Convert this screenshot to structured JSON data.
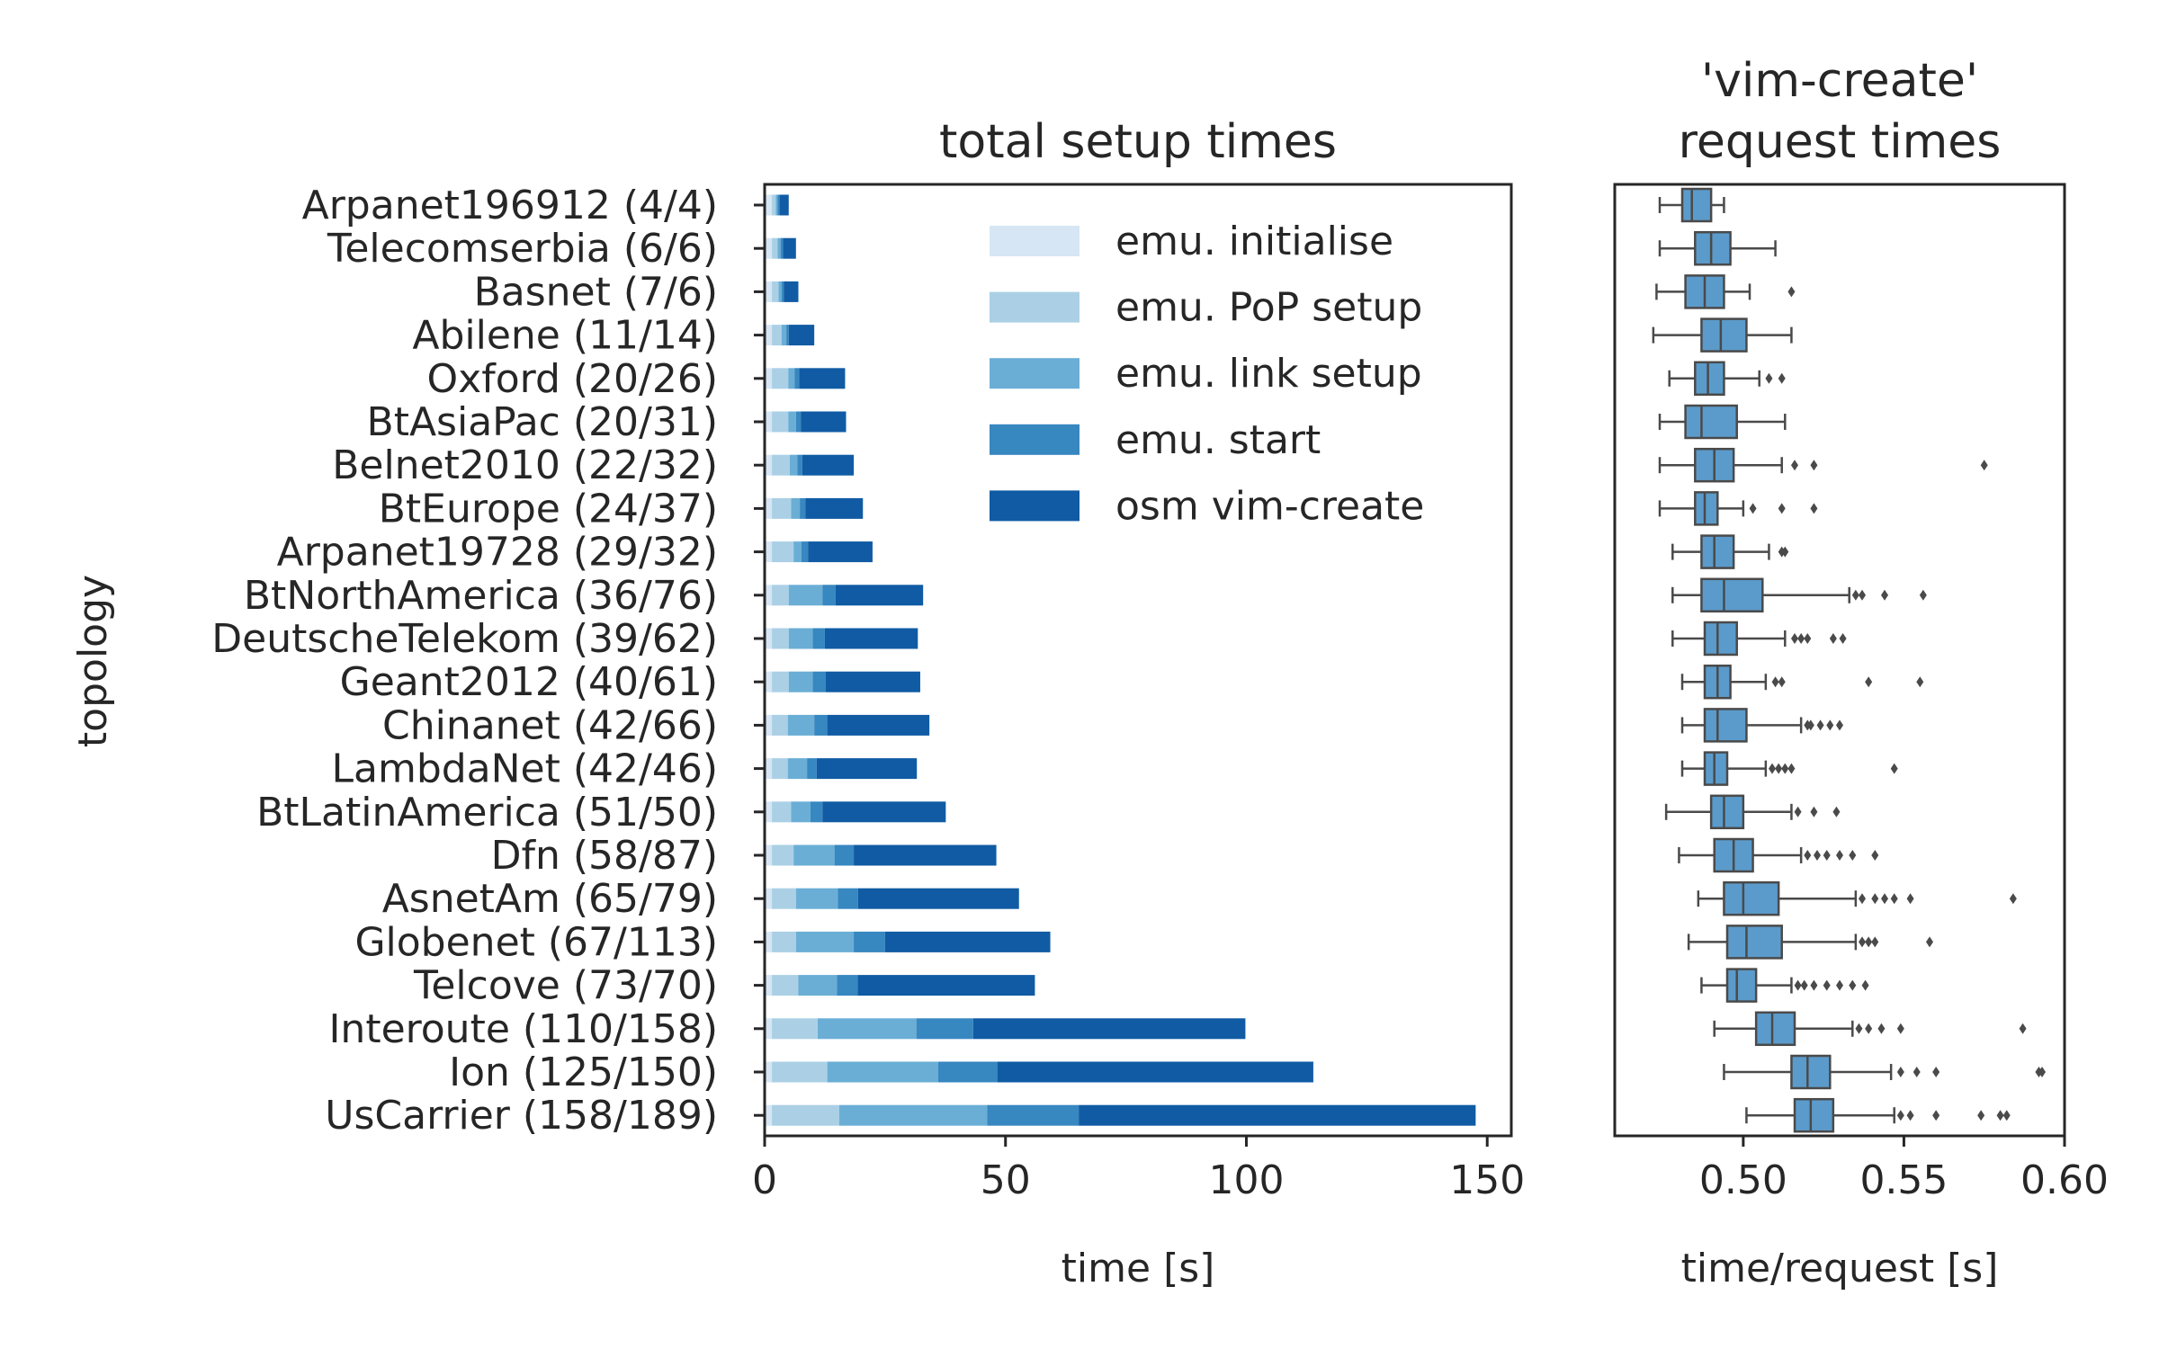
{
  "chart_data": [
    {
      "type": "bar",
      "orientation": "horizontal",
      "stacked": true,
      "title": "total setup times",
      "xlabel": "time [s]",
      "ylabel": "topology",
      "xlim": [
        0,
        155
      ],
      "xticks": [
        0,
        50,
        100,
        150
      ],
      "categories": [
        "Arpanet196912 (4/4)",
        "Telecomserbia (6/6)",
        "Basnet (7/6)",
        "Abilene (11/14)",
        "Oxford (20/26)",
        "BtAsiaPac (20/31)",
        "Belnet2010 (22/32)",
        "BtEurope (24/37)",
        "Arpanet19728 (29/32)",
        "BtNorthAmerica (36/76)",
        "DeutscheTelekom (39/62)",
        "Geant2012 (40/61)",
        "Chinanet (42/66)",
        "LambdaNet (42/46)",
        "BtLatinAmerica (51/50)",
        "Dfn (58/87)",
        "AsnetAm (65/79)",
        "Globenet (67/113)",
        "Telcove (73/70)",
        "Interoute (110/158)",
        "Ion (125/150)",
        "UsCarrier (158/189)"
      ],
      "series": [
        {
          "name": "emu. initialise",
          "color": "#d6e6f4",
          "values": [
            1.5,
            1.5,
            1.5,
            1.5,
            1.5,
            1.5,
            1.5,
            1.5,
            1.5,
            1.5,
            1.5,
            1.5,
            1.5,
            1.5,
            1.5,
            1.5,
            1.5,
            1.5,
            1.5,
            1.5,
            1.5,
            1.5
          ]
        },
        {
          "name": "emu. PoP setup",
          "color": "#abd0e6",
          "values": [
            0.8,
            1.2,
            1.4,
            2.0,
            3.4,
            3.4,
            3.7,
            4.0,
            4.5,
            3.5,
            3.5,
            3.5,
            3.3,
            3.3,
            4.0,
            4.5,
            5.0,
            5.0,
            5.5,
            9.5,
            11.5,
            14.0
          ]
        },
        {
          "name": "emu. link setup",
          "color": "#6aaed6",
          "values": [
            0.4,
            0.6,
            0.6,
            1.0,
            1.3,
            1.6,
            1.6,
            1.8,
            1.6,
            7.0,
            5.0,
            5.0,
            5.5,
            4.0,
            4.0,
            8.5,
            8.7,
            12.0,
            8.0,
            20.5,
            23.0,
            30.7
          ]
        },
        {
          "name": "emu. start",
          "color": "#3787c0",
          "values": [
            0.4,
            0.5,
            0.5,
            0.5,
            1.0,
            1.0,
            1.0,
            1.2,
            1.4,
            2.7,
            2.5,
            2.7,
            2.7,
            2.0,
            2.5,
            4.0,
            4.2,
            6.5,
            4.3,
            11.8,
            12.3,
            19.0
          ]
        },
        {
          "name": "osm vim-create",
          "color": "#105ba4",
          "values": [
            1.9,
            2.7,
            3.0,
            5.3,
            9.5,
            9.4,
            10.7,
            11.9,
            13.4,
            18.2,
            19.3,
            19.6,
            21.2,
            20.8,
            25.6,
            29.6,
            33.4,
            34.3,
            36.8,
            56.5,
            65.6,
            82.4
          ]
        }
      ],
      "legend_position": "top-right"
    },
    {
      "type": "box",
      "orientation": "horizontal",
      "title": "'vim-create'\nrequest times",
      "title_lines": [
        "'vim-create'",
        "request times"
      ],
      "xlabel": "time/request [s]",
      "xlim": [
        0.46,
        0.6
      ],
      "xticks": [
        0.5,
        0.55,
        0.6
      ],
      "xtick_labels": [
        "0.50",
        "0.55",
        "0.60"
      ],
      "color": "#5b9bcb",
      "boxes": [
        {
          "whislo": 0.474,
          "q1": 0.481,
          "med": 0.484,
          "q3": 0.49,
          "whishi": 0.494,
          "fliers": []
        },
        {
          "whislo": 0.474,
          "q1": 0.485,
          "med": 0.49,
          "q3": 0.496,
          "whishi": 0.51,
          "fliers": []
        },
        {
          "whislo": 0.473,
          "q1": 0.482,
          "med": 0.488,
          "q3": 0.494,
          "whishi": 0.502,
          "fliers": [
            0.515
          ]
        },
        {
          "whislo": 0.472,
          "q1": 0.487,
          "med": 0.493,
          "q3": 0.501,
          "whishi": 0.515,
          "fliers": []
        },
        {
          "whislo": 0.477,
          "q1": 0.485,
          "med": 0.489,
          "q3": 0.494,
          "whishi": 0.505,
          "fliers": [
            0.508,
            0.512
          ]
        },
        {
          "whislo": 0.474,
          "q1": 0.482,
          "med": 0.487,
          "q3": 0.498,
          "whishi": 0.513,
          "fliers": []
        },
        {
          "whislo": 0.474,
          "q1": 0.485,
          "med": 0.491,
          "q3": 0.497,
          "whishi": 0.512,
          "fliers": [
            0.516,
            0.522,
            0.575
          ]
        },
        {
          "whislo": 0.474,
          "q1": 0.485,
          "med": 0.488,
          "q3": 0.492,
          "whishi": 0.5,
          "fliers": [
            0.503,
            0.512,
            0.522
          ]
        },
        {
          "whislo": 0.478,
          "q1": 0.487,
          "med": 0.491,
          "q3": 0.497,
          "whishi": 0.508,
          "fliers": [
            0.512,
            0.513
          ]
        },
        {
          "whislo": 0.478,
          "q1": 0.487,
          "med": 0.494,
          "q3": 0.506,
          "whishi": 0.533,
          "fliers": [
            0.535,
            0.537,
            0.544,
            0.556
          ]
        },
        {
          "whislo": 0.478,
          "q1": 0.488,
          "med": 0.492,
          "q3": 0.498,
          "whishi": 0.513,
          "fliers": [
            0.516,
            0.518,
            0.52,
            0.528,
            0.531
          ]
        },
        {
          "whislo": 0.481,
          "q1": 0.488,
          "med": 0.492,
          "q3": 0.496,
          "whishi": 0.507,
          "fliers": [
            0.51,
            0.512,
            0.539,
            0.555
          ]
        },
        {
          "whislo": 0.481,
          "q1": 0.488,
          "med": 0.492,
          "q3": 0.501,
          "whishi": 0.518,
          "fliers": [
            0.52,
            0.521,
            0.524,
            0.527,
            0.53
          ]
        },
        {
          "whislo": 0.481,
          "q1": 0.488,
          "med": 0.491,
          "q3": 0.495,
          "whishi": 0.507,
          "fliers": [
            0.509,
            0.511,
            0.513,
            0.515,
            0.547
          ]
        },
        {
          "whislo": 0.476,
          "q1": 0.49,
          "med": 0.494,
          "q3": 0.5,
          "whishi": 0.515,
          "fliers": [
            0.517,
            0.522,
            0.529
          ]
        },
        {
          "whislo": 0.48,
          "q1": 0.491,
          "med": 0.497,
          "q3": 0.503,
          "whishi": 0.518,
          "fliers": [
            0.52,
            0.523,
            0.526,
            0.53,
            0.534,
            0.541
          ]
        },
        {
          "whislo": 0.486,
          "q1": 0.494,
          "med": 0.5,
          "q3": 0.511,
          "whishi": 0.535,
          "fliers": [
            0.537,
            0.541,
            0.544,
            0.547,
            0.552,
            0.584
          ]
        },
        {
          "whislo": 0.483,
          "q1": 0.495,
          "med": 0.501,
          "q3": 0.512,
          "whishi": 0.535,
          "fliers": [
            0.537,
            0.539,
            0.541,
            0.558
          ]
        },
        {
          "whislo": 0.487,
          "q1": 0.495,
          "med": 0.498,
          "q3": 0.504,
          "whishi": 0.515,
          "fliers": [
            0.517,
            0.519,
            0.522,
            0.526,
            0.53,
            0.534,
            0.538
          ]
        },
        {
          "whislo": 0.491,
          "q1": 0.504,
          "med": 0.509,
          "q3": 0.516,
          "whishi": 0.534,
          "fliers": [
            0.536,
            0.539,
            0.543,
            0.549,
            0.587
          ]
        },
        {
          "whislo": 0.494,
          "q1": 0.515,
          "med": 0.52,
          "q3": 0.527,
          "whishi": 0.546,
          "fliers": [
            0.549,
            0.554,
            0.56,
            0.592,
            0.593
          ]
        },
        {
          "whislo": 0.501,
          "q1": 0.516,
          "med": 0.521,
          "q3": 0.528,
          "whishi": 0.547,
          "fliers": [
            0.549,
            0.552,
            0.56,
            0.574,
            0.58,
            0.582
          ]
        }
      ]
    }
  ]
}
